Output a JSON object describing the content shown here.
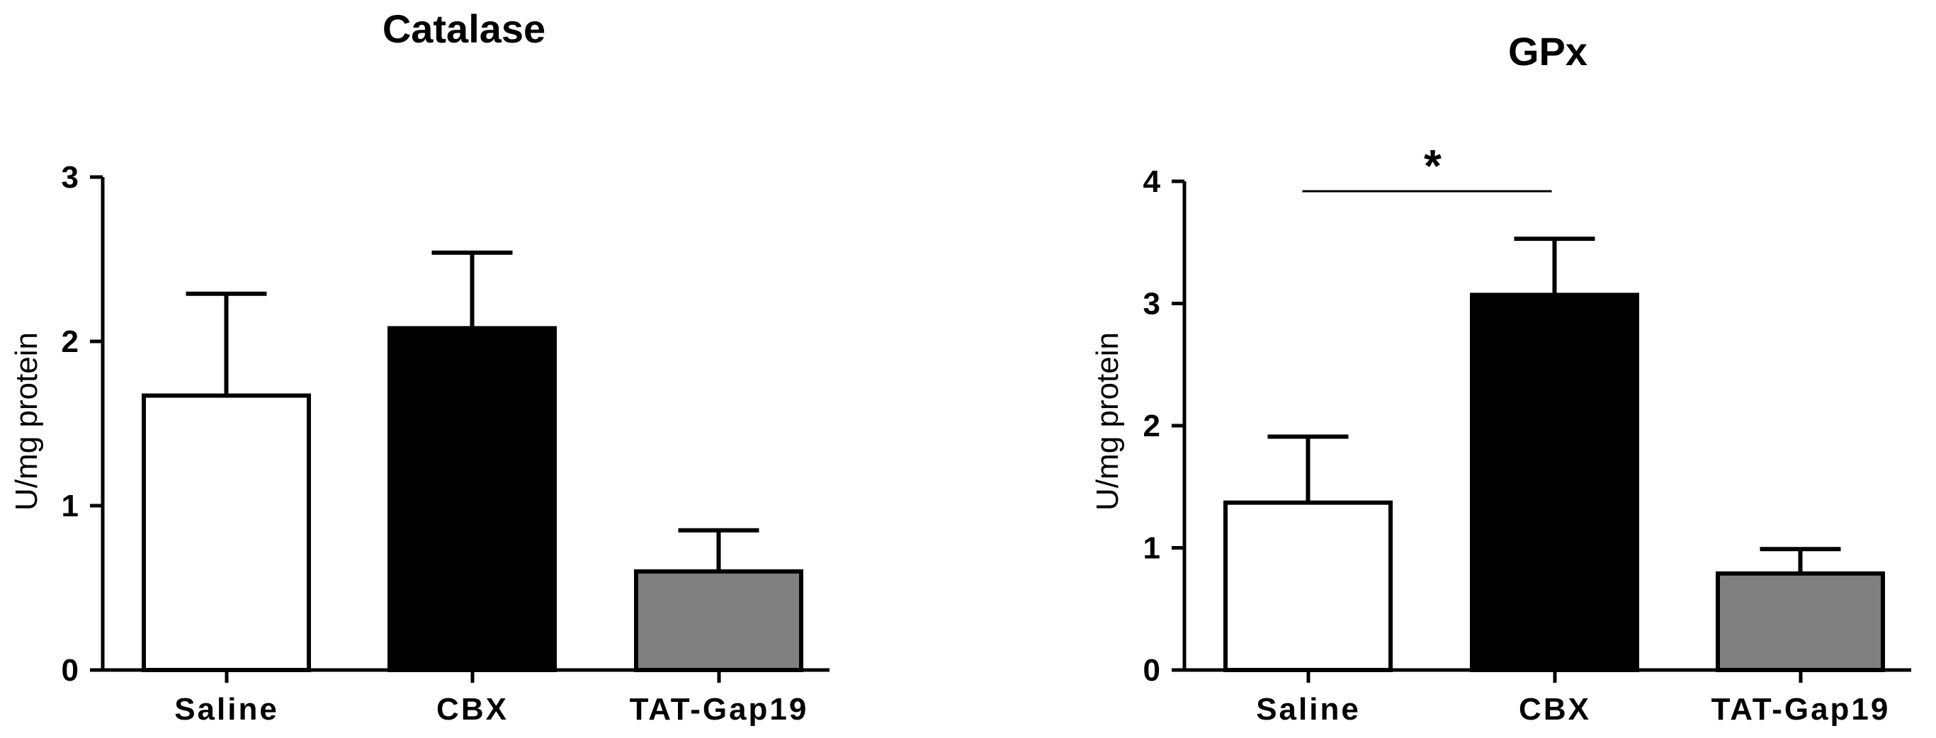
{
  "chart_data": [
    {
      "type": "bar",
      "title": "Catalase",
      "ylabel": "U/mg protein",
      "xlabel": "",
      "categories": [
        "Saline",
        "CBX",
        "TAT-Gap19"
      ],
      "values": [
        1.67,
        2.08,
        0.6
      ],
      "error_upper": [
        2.29,
        2.54,
        0.85
      ],
      "colors": [
        "#ffffff",
        "#000000",
        "#808080"
      ],
      "ylim": [
        0,
        3
      ],
      "yticks": [
        "0",
        "1",
        "2",
        "3"
      ],
      "significance": []
    },
    {
      "type": "bar",
      "title": "GPx",
      "ylabel": "U/mg protein",
      "xlabel": "",
      "categories": [
        "Saline",
        "CBX",
        "TAT-Gap19"
      ],
      "values": [
        1.37,
        3.07,
        0.79
      ],
      "error_upper": [
        1.91,
        3.53,
        0.99
      ],
      "colors": [
        "#ffffff",
        "#000000",
        "#808080"
      ],
      "ylim": [
        0,
        4
      ],
      "yticks": [
        "0",
        "1",
        "2",
        "3",
        "4"
      ],
      "significance": [
        {
          "from": "Saline",
          "to": "CBX",
          "label": "*"
        }
      ]
    }
  ]
}
